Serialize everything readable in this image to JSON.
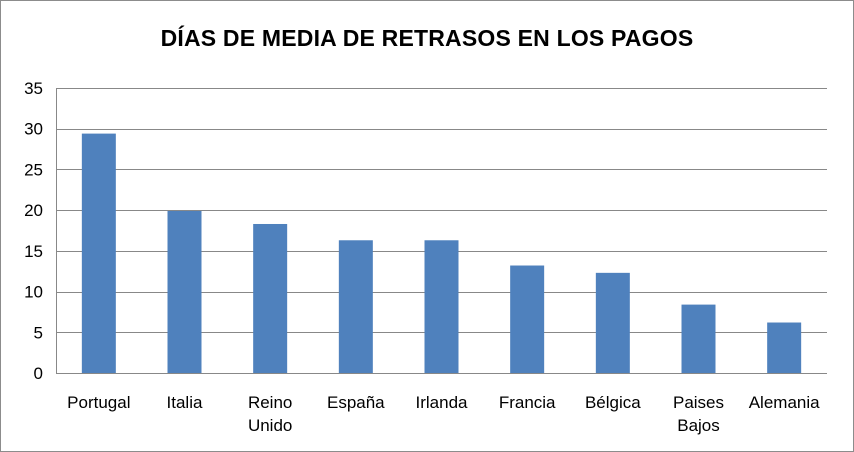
{
  "chart_data": {
    "type": "bar",
    "title": "DÍAS DE MEDIA DE RETRASOS EN LOS PAGOS",
    "categories": [
      "Portugal",
      "Italia",
      "Reino Unido",
      "España",
      "Irlanda",
      "Francia",
      "Bélgica",
      "Paises Bajos",
      "Alemania"
    ],
    "category_lines": [
      [
        "Portugal"
      ],
      [
        "Italia"
      ],
      [
        "Reino",
        "Unido"
      ],
      [
        "España"
      ],
      [
        "Irlanda"
      ],
      [
        "Francia"
      ],
      [
        "Bélgica"
      ],
      [
        "Paises",
        "Bajos"
      ],
      [
        "Alemania"
      ]
    ],
    "values": [
      29.4,
      19.9,
      18.3,
      16.3,
      16.3,
      13.2,
      12.3,
      8.4,
      6.2
    ],
    "ylim": [
      0,
      35
    ],
    "yticks": [
      0,
      5,
      10,
      15,
      20,
      25,
      30,
      35
    ],
    "grid": true,
    "legend": "none",
    "bar_color": "#4f81bd",
    "grid_color": "#888888"
  }
}
